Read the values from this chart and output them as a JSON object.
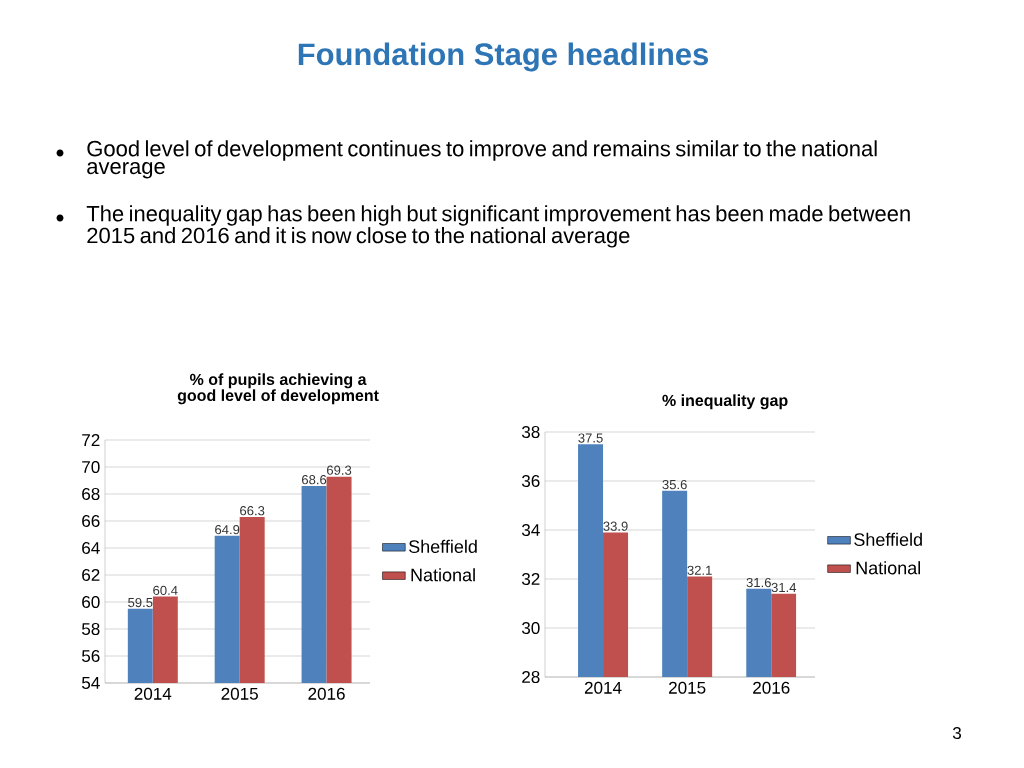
{
  "chart_data": [
    {
      "type": "other",
      "title": "Foundation Stage headlines",
      "annotations": [
        "Good level of development continues to improve and remains similar to the national average",
        "The inequality gap has been high but significant improvement has been made between 2015 and 2016 and it is now close to the national average",
        "3"
      ]
    },
    {
      "type": "bar",
      "title": "% of pupils achieving a good level of development",
      "categories": [
        "2014",
        "2015",
        "2016"
      ],
      "series": [
        {
          "name": "Sheffield",
          "color": "#4f81bd",
          "values": [
            59.5,
            64.9,
            68.6
          ]
        },
        {
          "name": "National",
          "color": "#c0504d",
          "values": [
            60.4,
            66.3,
            69.3
          ]
        }
      ],
      "ylim": [
        54,
        72
      ],
      "yticks": [
        54,
        56,
        58,
        60,
        62,
        64,
        66,
        68,
        70,
        72
      ],
      "grid": "y",
      "legend": "right",
      "data_labels": true
    },
    {
      "type": "bar",
      "title": "% inequality gap",
      "categories": [
        "2014",
        "2015",
        "2016"
      ],
      "series": [
        {
          "name": "Sheffield",
          "color": "#4f81bd",
          "values": [
            37.5,
            35.6,
            31.6
          ]
        },
        {
          "name": "National",
          "color": "#c0504d",
          "values": [
            33.9,
            32.1,
            31.4
          ]
        }
      ],
      "ylim": [
        28,
        38
      ],
      "yticks": [
        28,
        30,
        32,
        34,
        36,
        38
      ],
      "grid": "y",
      "legend": "right",
      "data_labels": true
    }
  ]
}
